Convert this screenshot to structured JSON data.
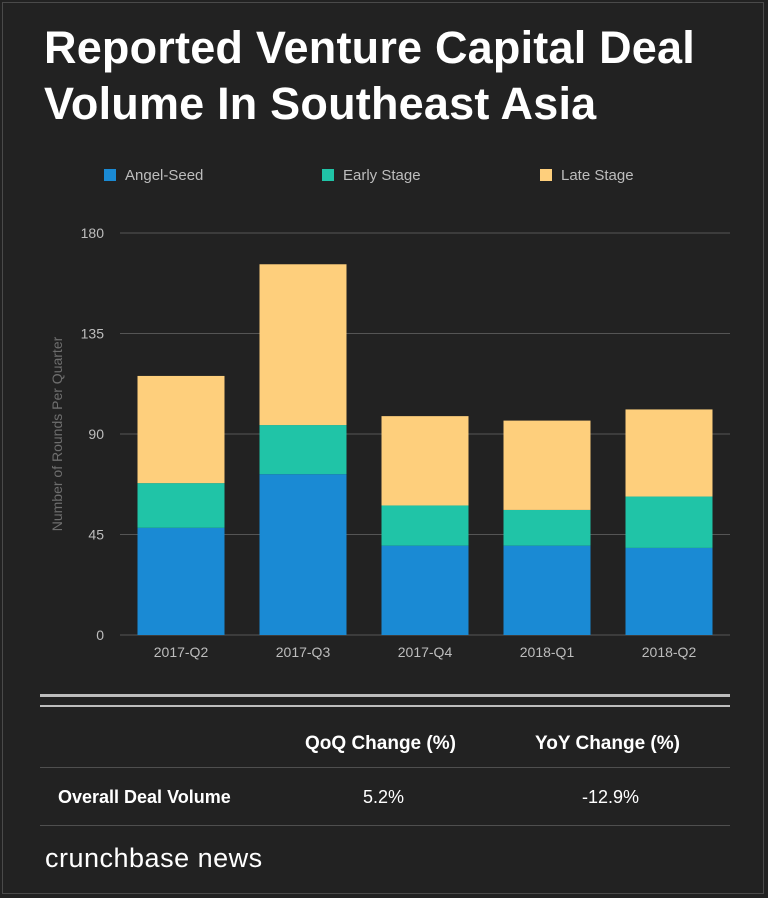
{
  "chart_data": {
    "type": "bar",
    "stacked": true,
    "title": "Reported Venture Capital Deal Volume In Southeast Asia",
    "xlabel": "",
    "ylabel": "Number of Rounds Per Quarter",
    "ylim": [
      0,
      180
    ],
    "yticks": [
      0,
      45,
      90,
      135,
      180
    ],
    "grid": true,
    "legend_position": "top",
    "categories": [
      "2017-Q2",
      "2017-Q3",
      "2017-Q4",
      "2018-Q1",
      "2018-Q2"
    ],
    "series": [
      {
        "name": "Angel-Seed",
        "color": "#1a8ad4",
        "values": [
          48,
          72,
          40,
          40,
          39
        ]
      },
      {
        "name": "Early Stage",
        "color": "#20c4a7",
        "values": [
          20,
          22,
          18,
          16,
          23
        ]
      },
      {
        "name": "Late Stage",
        "color": "#fecf7c",
        "values": [
          48,
          72,
          40,
          40,
          39
        ]
      }
    ]
  },
  "table": {
    "headers": [
      "QoQ Change (%)",
      "YoY Change (%)"
    ],
    "row_label": "Overall Deal Volume",
    "qoq": "5.2%",
    "yoy": "-12.9%"
  },
  "brand": "crunchbase news",
  "colors": {
    "background": "#222222",
    "grid": "#555555",
    "axis_text": "#bdbdbd"
  }
}
